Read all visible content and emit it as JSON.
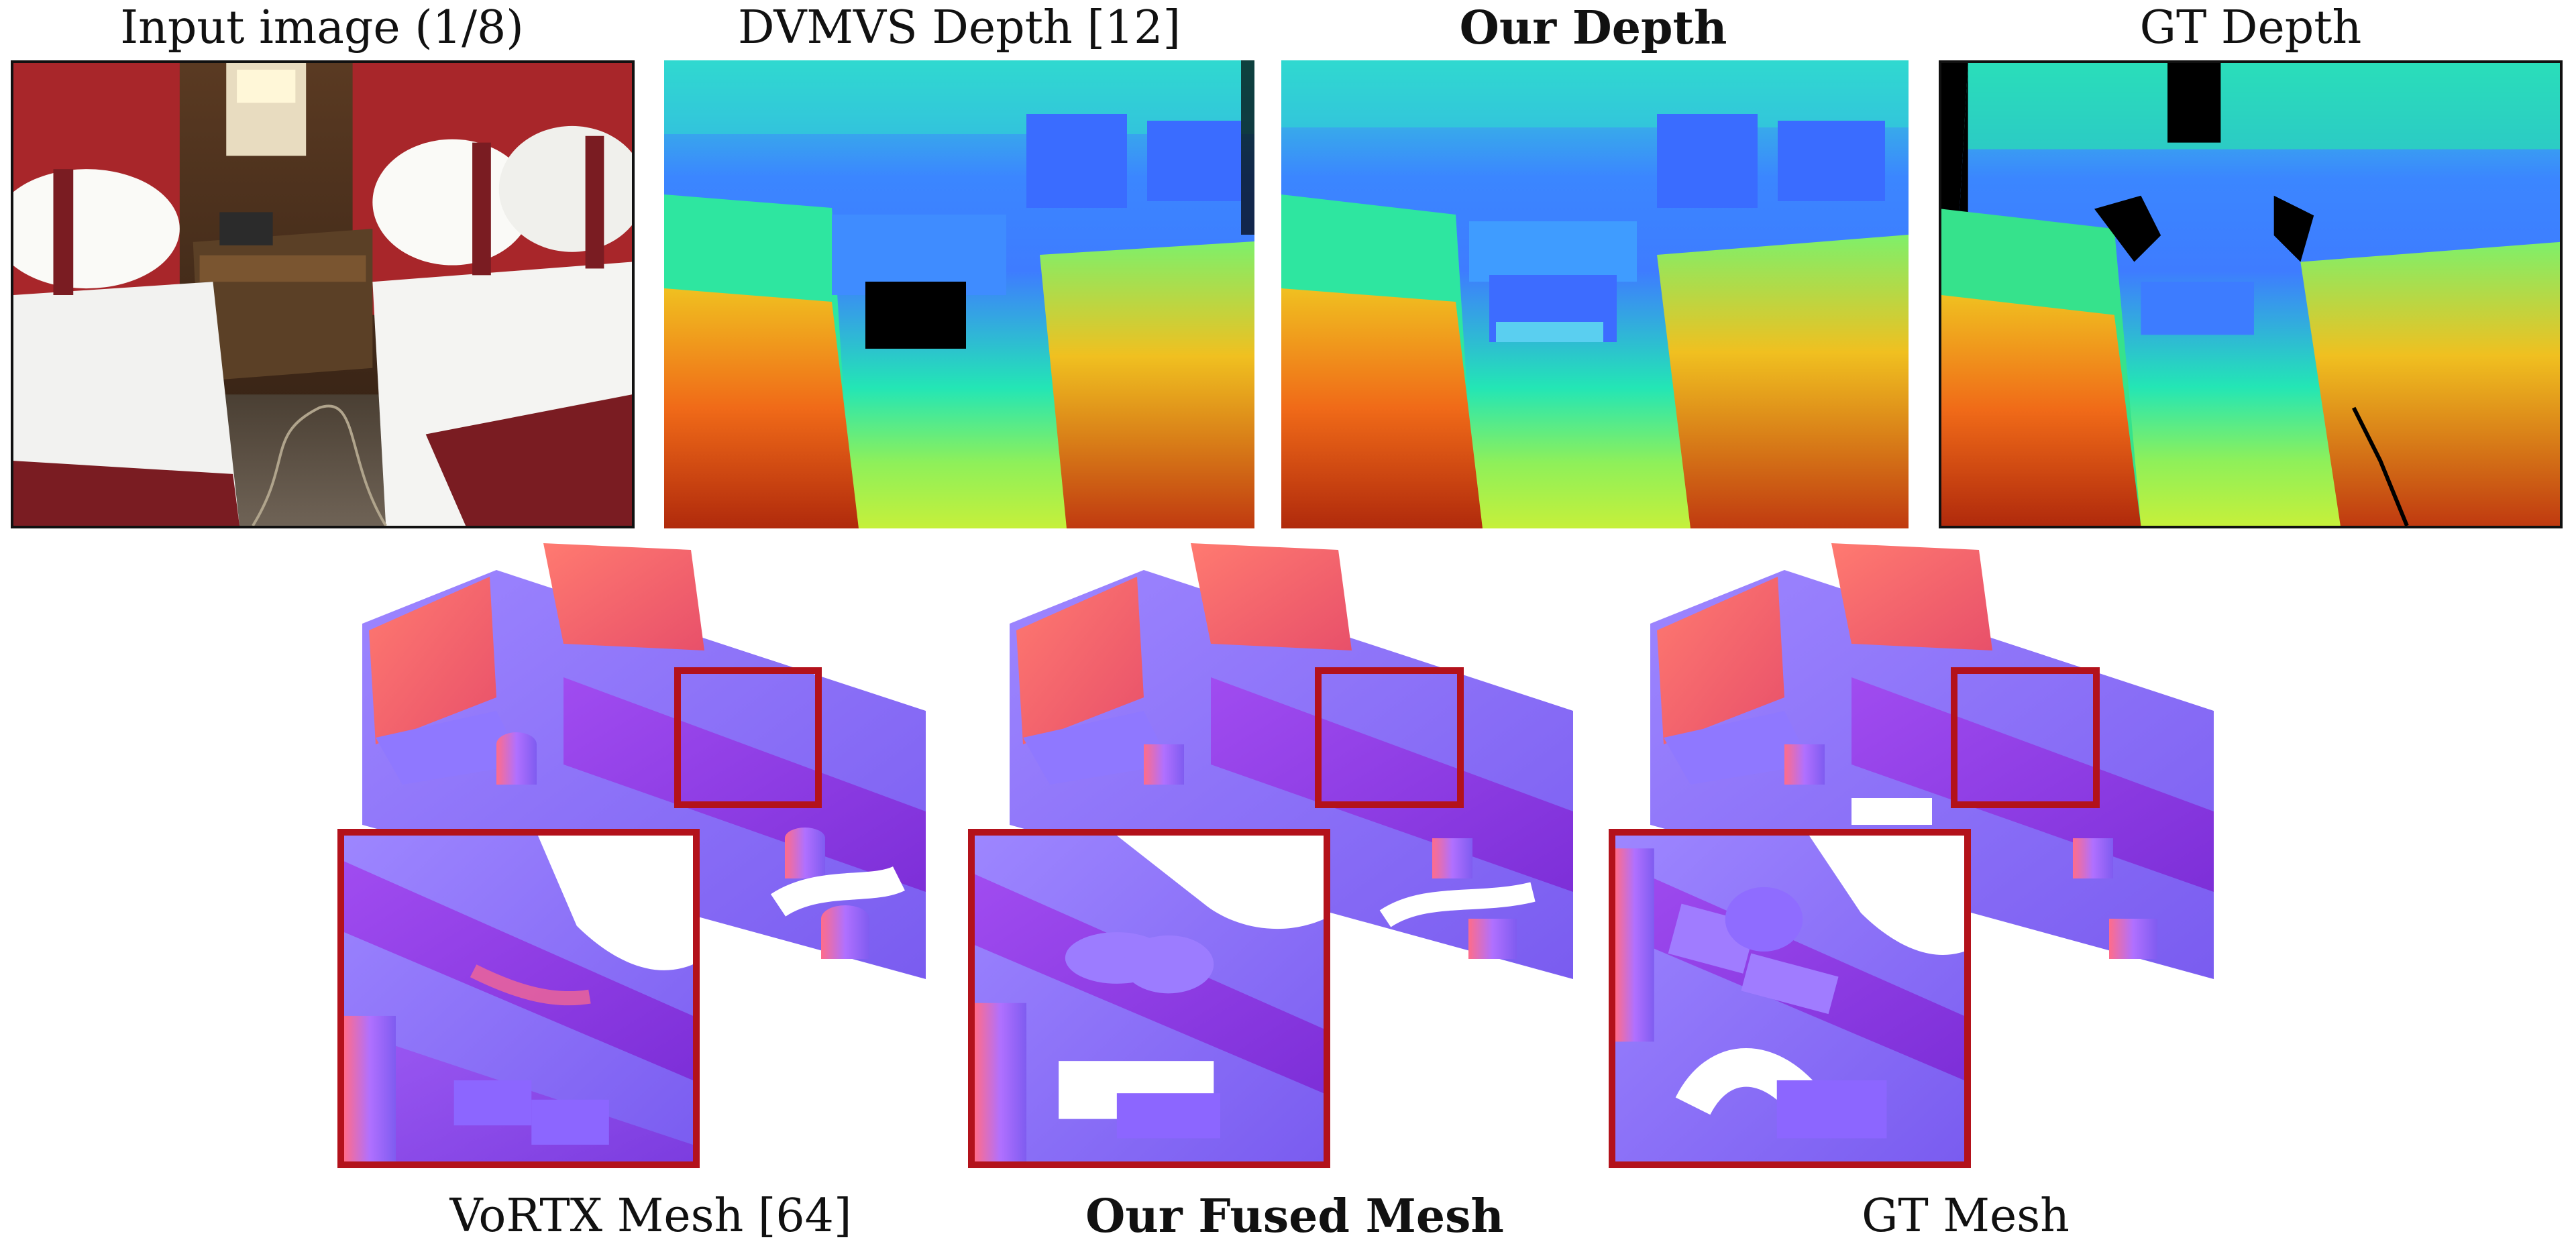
{
  "top_row": [
    {
      "id": "input",
      "label": "Input image (1/8)",
      "bold": false
    },
    {
      "id": "dvmvs",
      "label": "DVMVS Depth [12]",
      "bold": false
    },
    {
      "id": "ours_depth",
      "label": "Our Depth",
      "bold": true
    },
    {
      "id": "gt_depth",
      "label": "GT Depth",
      "bold": false
    }
  ],
  "bottom_row": [
    {
      "id": "vortx",
      "label": "VoRTX Mesh [64]",
      "bold": false
    },
    {
      "id": "ours_mesh",
      "label": "Our Fused Mesh",
      "bold": true
    },
    {
      "id": "gt_mesh",
      "label": "GT Mesh",
      "bold": false
    }
  ],
  "colors": {
    "zoom_border": "#b3121b",
    "depth_far": "#3a5cff",
    "depth_mid": "#2ee6a8",
    "depth_near": "#c83a10",
    "mesh_floor": "#8a6cf2",
    "mesh_wall": "#f06a6a",
    "invalid": "#000000"
  }
}
